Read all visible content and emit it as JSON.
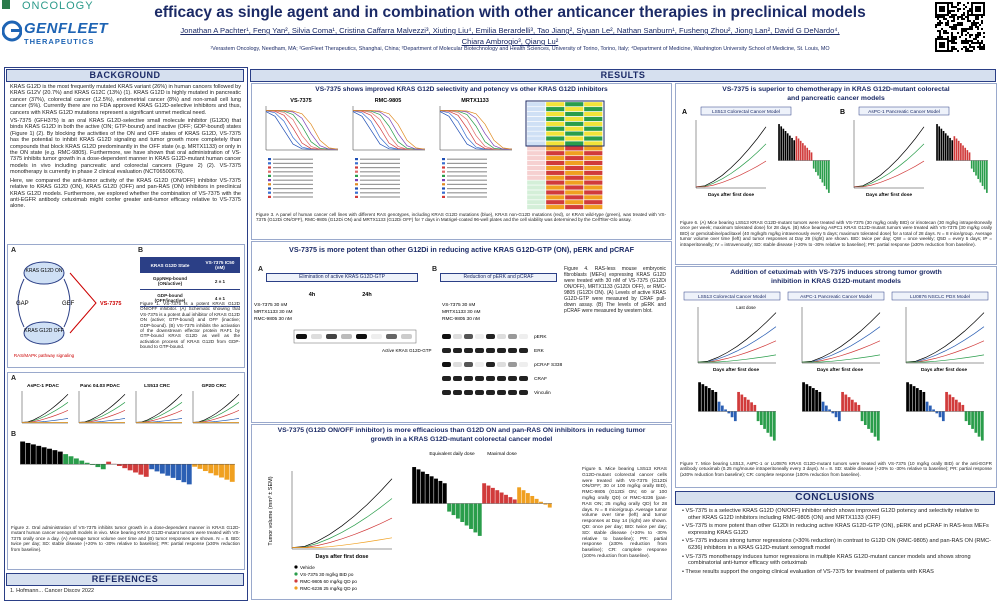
{
  "header": {
    "logo_top": "ONCOLOGY",
    "logo_name": "GENFLEET",
    "logo_sub": "THERAPEUTICS",
    "title": "efficacy as single agent and in combination with other anticancer therapies in preclinical models",
    "authors": "Jonathan A Pachter¹, Feng Yan², Silvia Coma¹, Cristina Caffarra Malvezzi³, Xiuting Liu⁴, Emilia Berardelli³, Tao Jiang², Siyuan Le², Nathan Sanburn¹, Fusheng Zhou², Jiong Lan², David G DeNardo⁴, Chiara Ambrogio³, Qiang Lu²",
    "affiliations": "¹Verastem Oncology, Needham, MA; ²GenFleet Therapeutics, Shanghai, China; ³Department of Molecular Biotechnology and Health Sciences, University of Torino, Torino, Italy; ⁴Department of Medicine, Washington University School of Medicine, St. Louis, MO"
  },
  "background": {
    "heading": "BACKGROUND",
    "paragraphs": [
      "KRAS G12D is the most frequently mutated KRAS variant (26%) in human cancers followed by KRAS G12V (20.7%) and KRAS G12C (13%) (1). KRAS G12D is highly mutated in pancreatic cancer (37%), colorectal cancer (12.5%), endometrial cancer (8%) and non-small cell lung cancer (5%). Currently there are no FDA approved KRAS G12D-selective inhibitors and thus, cancers with KRAS G12D mutations represent a significant unmet medical need.",
      "VS-7375 (GFH375) is an oral KRAS G12D-selective small molecule inhibitor (G12Di) that binds KRAS G12D in both the active (ON; GTP-bound) and inactive (OFF; GDP-bound) states (Figure 1) (2). By blocking the activities of the ON and OFF states of KRAS G12D, VS-7375 has the potential to inhibit KRAS G12D signaling and tumor growth more completely than compounds that block KRAS G12D predominantly in the OFF state (e.g. MRTX1133) or only in the ON state (e.g. RMC-9805). Furthermore, we have shown that oral administration of VS-7375 inhibits tumor growth in a dose-dependent manner in KRAS G12D-mutant human cancer models in vivo including pancreatic and colorectal cancers (Figure 2) (2). VS-7375 monotherapy is currently in phase 2 clinical evaluation (NCT06500676).",
      "Here, we compared the anti-tumor activity of the KRAS G12D (ON/OFF) inhibitor VS-7375 relative to KRAS G12D (ON), KRAS G12D (OFF) and pan-RAS (ON) inhibitors in preclinical KRAS G12D models. Furthermore, we explored whether the combination of VS-7375 with the anti-EGFR antibody cetuximab might confer greater anti-tumor efficacy relative to VS-7375 alone."
    ]
  },
  "fig1": {
    "panel_a": "A",
    "panel_b": "B",
    "cycle_on": "KRAS G12D ON",
    "cycle_off": "KRAS G12D OFF",
    "gap": "GAP",
    "gef": "GEF",
    "drug": "VS-7375",
    "pathway": "RAS/MAPK pathway signaling",
    "table_header": [
      "KRAS G12D State",
      "VS-7375 IC50 (nM)"
    ],
    "table_rows": [
      [
        "GppNHp-bound (ON/active)",
        "2 ± 1"
      ],
      [
        "GDP-bound (OFF/inactive)",
        "4 ± 1"
      ]
    ],
    "caption": "Figure 1. VS-7375 is a potent KRAS G12D ON/OFF inhibitor. (A) Schematic showing that VS-7375 is a potent dual inhibitor of KRAS G12D ON (active; GTP-bound) and OFF (inactive; GDP-bound). (B) VS-7375 inhibits the activation of the downstream effector protein RAF1 by GTP-bound KRAS G12D as well as the activation process of KRAS G12D from GDP-bound to GTP-bound."
  },
  "fig2": {
    "panel_a": "A",
    "panel_b": "B",
    "models": [
      "AsPC-1 PDAC",
      "Panc 04.03 PDAC",
      "LS513 CRC",
      "GP2D CRC"
    ],
    "caption": "Figure 2. Oral administration of VS-7375 inhibits tumor growth in a dose-dependent manner in KRAS G12D-mutant human cancer xenograft models in vivo. Mice bearing KRAS G12D-mutant tumors were treated with VS-7375 orally once a day. (A) Average tumor volume over time and (B) tumor responses are shown. N = 8. BID: twice per day; SD: stable disease (+20% to -30% relative to baseline); PR: partial response (≥30% reduction from baseline)."
  },
  "references": {
    "heading": "REFERENCES",
    "items": [
      "1. Hofmann... Cancer Discov 2022"
    ]
  },
  "results": {
    "heading": "RESULTS",
    "box1": {
      "title": "VS-7375 shows improved KRAS G12D selectivity and potency vs other KRAS G12D inhibitors",
      "plots": [
        "VS-7375",
        "RMC-9805",
        "MRTX1133"
      ],
      "caption": "Figure 3. A panel of human cancer cell lines with different RAS genotypes, including KRAS G12D mutations (blue), KRAS non-G12D mutations (red), or KRAS wild-type (green), was treated with VS-7375 (G12Di ON/OFF), RMC-9805 (G12Di ON) and MRTX1133 (G12Di OFF) for 7 days in Matrigel-coated 96-well plates and the cell viability was determined by the CellTiter-Glo assay."
    },
    "box2": {
      "title": "VS-7375 is more potent than other G12Di in reducing active KRAS G12D-GTP (ON), pERK and pCRAF",
      "panel_a": "A",
      "panel_a_title": "Elimination of active KRAS G12D-GTP",
      "panel_b": "B",
      "panel_b_title": "Reduction of pERK and pCRAF",
      "times": [
        "4h",
        "24h"
      ],
      "treatments": [
        "VS-7375 30 nM",
        "MRTX1133 30 nM",
        "RMC-9805 30 nM"
      ],
      "active_label": "Active KRAS G12D-GTP",
      "blots": [
        "pERK",
        "ERK",
        "pCRAF S338",
        "CRAF",
        "Vinculin"
      ],
      "caption": "Figure 4. RAS-less mouse embryonic fibroblasts (MEFs) expressing KRAS G12D were treated with 30 nM of VS-7375 (G12Di ON/OFF), MRTX1133 (G12Di OFF), or RMC-9805 (G12Di ON). (A) Levels of active KRAS G12D-GTP were measured by CRAF pull-down assay. (B) The levels of pERK and pCRAF were measured by western blot."
    },
    "box3": {
      "title": "VS-7375 (G12D ON/OFF inhibitor) is more efficacious than G12D ON and pan-RAS ON inhibitors in reducing tumor growth in a KRAS G12D-mutant colorectal cancer model",
      "y_label": "Tumor volume (mm³ ± SEM)",
      "x_label": "Days after first dose",
      "series": [
        "Vehicle",
        "VS-7375 30 mg/kg BID po",
        "RMC-9805 60 mg/kg QD po",
        "RMC-6236 25 mg/kg QD po"
      ],
      "dose_groups": [
        "Equivalent daily dose",
        "Maximal dose"
      ],
      "caption": "Figure 5. Mice bearing LS513 KRAS G12D-mutant colorectal cancer cells were treated with VS-7375 (G12Di ON/OFF; 30 or 100 mg/kg orally BID), RMC-9805 (G12Di ON; 60 or 100 mg/kg orally QD) or RMC-6236 (pan-RAS ON; 25 mg/kg orally QD) for 28 days. N = 8 mice/group. Average tumor volume over time (left) and tumor responses at Day 14 (right) are shown. QD: once per day; BID: twice per day; SD: stable disease (+20% to -30% relative to baseline); PR: partial response (≥30% reduction from baseline); CR: complete response (100% reduction from baseline)."
    },
    "box4": {
      "title": "VS-7375 is superior to chemotherapy in KRAS G12D-mutant colorectal and pancreatic cancer models",
      "panels": [
        "A",
        "B"
      ],
      "models": [
        "LS513 Colorectal Cancer Model",
        "AsPC-1 Pancreatic Cancer Model"
      ],
      "x_label": "Days after first dose",
      "caption": "Figure 6. (A) Mice bearing LS513 KRAS G12D-mutant tumors were treated with VS-7375 (30 mg/kg orally BID) or irinotecan (30 mg/kg intraperitoneally once per week; maximum tolerated dose) for 28 days. (B) Mice bearing AsPC1 KRAS G12D-mutant tumors were treated with VS-7375 (30 mg/kg orally BID) or gemcitabine/paclitaxel (40 mg/kg/5 mg/kg intravenously every 5 days; maximum tolerated dose) for a total of 28 days. N = 8 mice/group. Average tumor volume over time (left) and tumor responses at Day 29 (right) are shown. BID: twice per day; QW = once weekly; Q5D = every 5 days; IP = intraperitoneally; IV = intravenously; SD: stable disease (+20% to -30% relative to baseline); PR: partial response (≥30% reduction from baseline)."
    },
    "box5": {
      "title": "Addition of cetuximab with VS-7375 induces strong tumor growth inhibition in KRAS G12D-mutant models",
      "models": [
        "LS513 Colorectal Cancer Model",
        "AsPC-1 Pancreatic Cancer Model",
        "LU0876 NSCLC PDX Model"
      ],
      "x_label": "Days after first dose",
      "last_dose": "Last dose",
      "caption": "Figure 7. Mice bearing LS513, AsPC-1 or LU0876 KRAS G12D-mutant tumors were treated with VS-7375 (10 mg/kg orally BID) or the anti-EGFR antibody cetuximab (0.25 mg/mouse intraperitoneally every 3 days). N = 8. SD: stable disease (+20% to -30% relative to baseline); PR: partial response (≥30% reduction from baseline); CR: complete response (100% reduction from baseline)."
    }
  },
  "conclusions": {
    "heading": "CONCLUSIONS",
    "items": [
      "VS-7375 is a selective KRAS G12D (ON/OFF) inhibitor which shows improved G12D potency and selectivity relative to other KRAS G12D inhibitors including RMC-9805 (ON) and MRTX1133 (OFF)",
      "VS-7375 is more potent than other G12Di in reducing active KRAS G12D-GTP (ON), pERK and pCRAF in RAS-less MEFs expressing KRAS G12D",
      "VS-7375 induces strong tumor regressions (>30% reduction) in contrast to G12D ON (RMC-9805) and pan-RAS ON (RMC-6236) inhibitors in a KRAS G12D-mutant xenograft model",
      "VS-7375 monotherapy induces tumor regressions in multiple KRAS G12D-mutant cancer models and shows strong combinatorial anti-tumor efficacy with cetuximab",
      "These results support the ongoing clinical evaluation of VS-7375 for treatment of patients with KRAS"
    ]
  }
}
